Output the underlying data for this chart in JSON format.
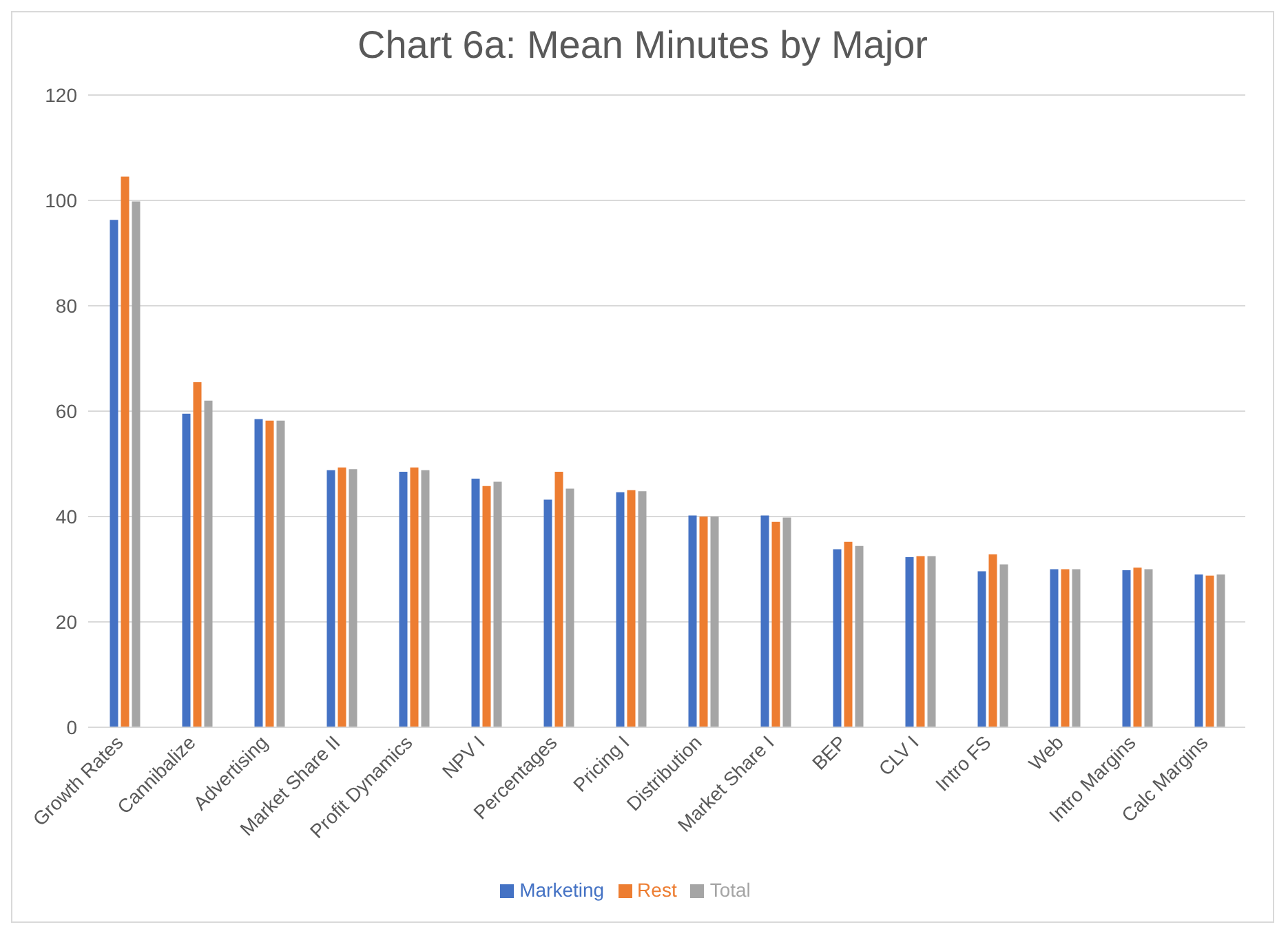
{
  "chart_data": {
    "type": "bar",
    "title": "Chart 6a: Mean Minutes by Major",
    "categories": [
      "Growth Rates",
      "Cannibalize",
      "Advertising",
      "Market Share II",
      "Profit Dynamics",
      "NPV I",
      "Percentages",
      "Pricing I",
      "Distribution",
      "Market Share I",
      "BEP",
      "CLV I",
      "Intro FS",
      "Web",
      "Intro Margins",
      "Calc Margins"
    ],
    "series": [
      {
        "name": "Marketing",
        "color": "#4472c4",
        "values": [
          96.3,
          59.5,
          58.5,
          48.8,
          48.5,
          47.2,
          43.2,
          44.6,
          40.2,
          40.2,
          33.8,
          32.3,
          29.6,
          30,
          29.8,
          29
        ]
      },
      {
        "name": "Rest",
        "color": "#ed7d31",
        "values": [
          104.5,
          65.5,
          58.2,
          49.3,
          49.3,
          45.8,
          48.5,
          45,
          40,
          39,
          35.2,
          32.5,
          32.8,
          30,
          30.3,
          28.8
        ]
      },
      {
        "name": "Total",
        "color": "#a5a5a5",
        "values": [
          99.8,
          62,
          58.2,
          49,
          48.8,
          46.6,
          45.3,
          44.8,
          40,
          39.8,
          34.4,
          32.5,
          30.9,
          30,
          30,
          29
        ]
      }
    ],
    "ylim": [
      0,
      120
    ],
    "yticks": [
      0,
      20,
      40,
      60,
      80,
      100,
      120
    ],
    "grid": "y",
    "legend": "bottom"
  }
}
